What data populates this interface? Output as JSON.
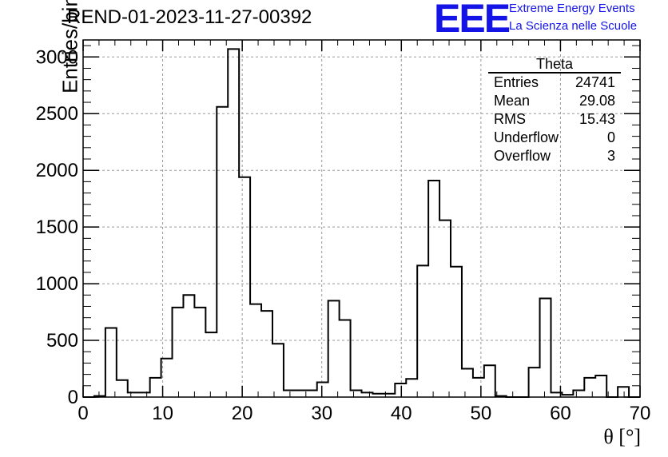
{
  "chart_data": {
    "type": "bar",
    "title": "REND-01-2023-11-27-00392",
    "xlabel": "θ [°]",
    "ylabel": "Entries/bin",
    "xlim": [
      0,
      70
    ],
    "ylim": [
      0,
      3150
    ],
    "x_ticks": [
      0,
      10,
      20,
      30,
      40,
      50,
      60,
      70
    ],
    "y_ticks": [
      0,
      500,
      1000,
      1500,
      2000,
      2500,
      3000
    ],
    "grid": true,
    "bin_width": 1.4,
    "bin_edges_start": 0,
    "values": [
      0,
      10,
      610,
      150,
      40,
      40,
      170,
      340,
      790,
      900,
      790,
      570,
      2560,
      3070,
      1940,
      820,
      760,
      470,
      60,
      60,
      60,
      130,
      850,
      680,
      60,
      40,
      30,
      30,
      120,
      160,
      1160,
      1910,
      1560,
      1150,
      250,
      170,
      280,
      10,
      0,
      0,
      260,
      870,
      40,
      20,
      60,
      170,
      190,
      0,
      90,
      0
    ],
    "series_color": "#000000"
  },
  "header": {
    "logo_text": "EEE",
    "logo_line1": "Extreme Energy Events",
    "logo_line2": "La Scienza nelle Scuole",
    "logo_color": "#1414e6"
  },
  "stats": {
    "title": "Theta",
    "rows": [
      {
        "label": "Entries",
        "value": "24741"
      },
      {
        "label": "Mean",
        "value": "29.08"
      },
      {
        "label": "RMS",
        "value": "15.43"
      },
      {
        "label": "Underflow",
        "value": "0"
      },
      {
        "label": "Overflow",
        "value": "3"
      }
    ]
  }
}
